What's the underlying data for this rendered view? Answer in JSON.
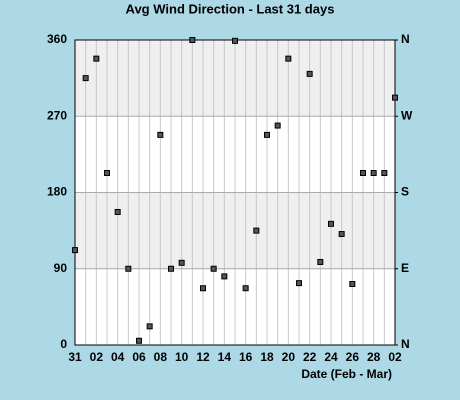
{
  "chart_data": {
    "type": "scatter",
    "title": "Avg Wind Direction - Last 31 days",
    "x_label": "Date (Feb - Mar)",
    "categories": [
      "31",
      null,
      "02",
      null,
      "04",
      null,
      "06",
      null,
      "08",
      null,
      "10",
      null,
      "12",
      null,
      "14",
      null,
      "16",
      null,
      "18",
      null,
      "20",
      null,
      "22",
      null,
      "24",
      null,
      "26",
      null,
      "28",
      null,
      "02"
    ],
    "values": [
      112,
      315,
      338,
      203,
      157,
      90,
      5,
      22,
      248,
      90,
      97,
      360,
      67,
      90,
      81,
      359,
      67,
      135,
      248,
      259,
      338,
      73,
      320,
      98,
      143,
      131,
      72,
      203,
      203,
      203,
      292
    ],
    "ylim": [
      0,
      360
    ],
    "yticks": [
      0,
      90,
      180,
      270,
      360
    ],
    "y2lim": [
      0,
      360
    ],
    "y2ticks": [
      {
        "value": 0,
        "label": "N"
      },
      {
        "value": 90,
        "label": "E"
      },
      {
        "value": 180,
        "label": "S"
      },
      {
        "value": 270,
        "label": "W"
      },
      {
        "value": 360,
        "label": "N"
      }
    ],
    "color": "#555555",
    "background": "#add8e6",
    "band_color": "#efefef",
    "shade_alternate": true,
    "grid": true
  }
}
